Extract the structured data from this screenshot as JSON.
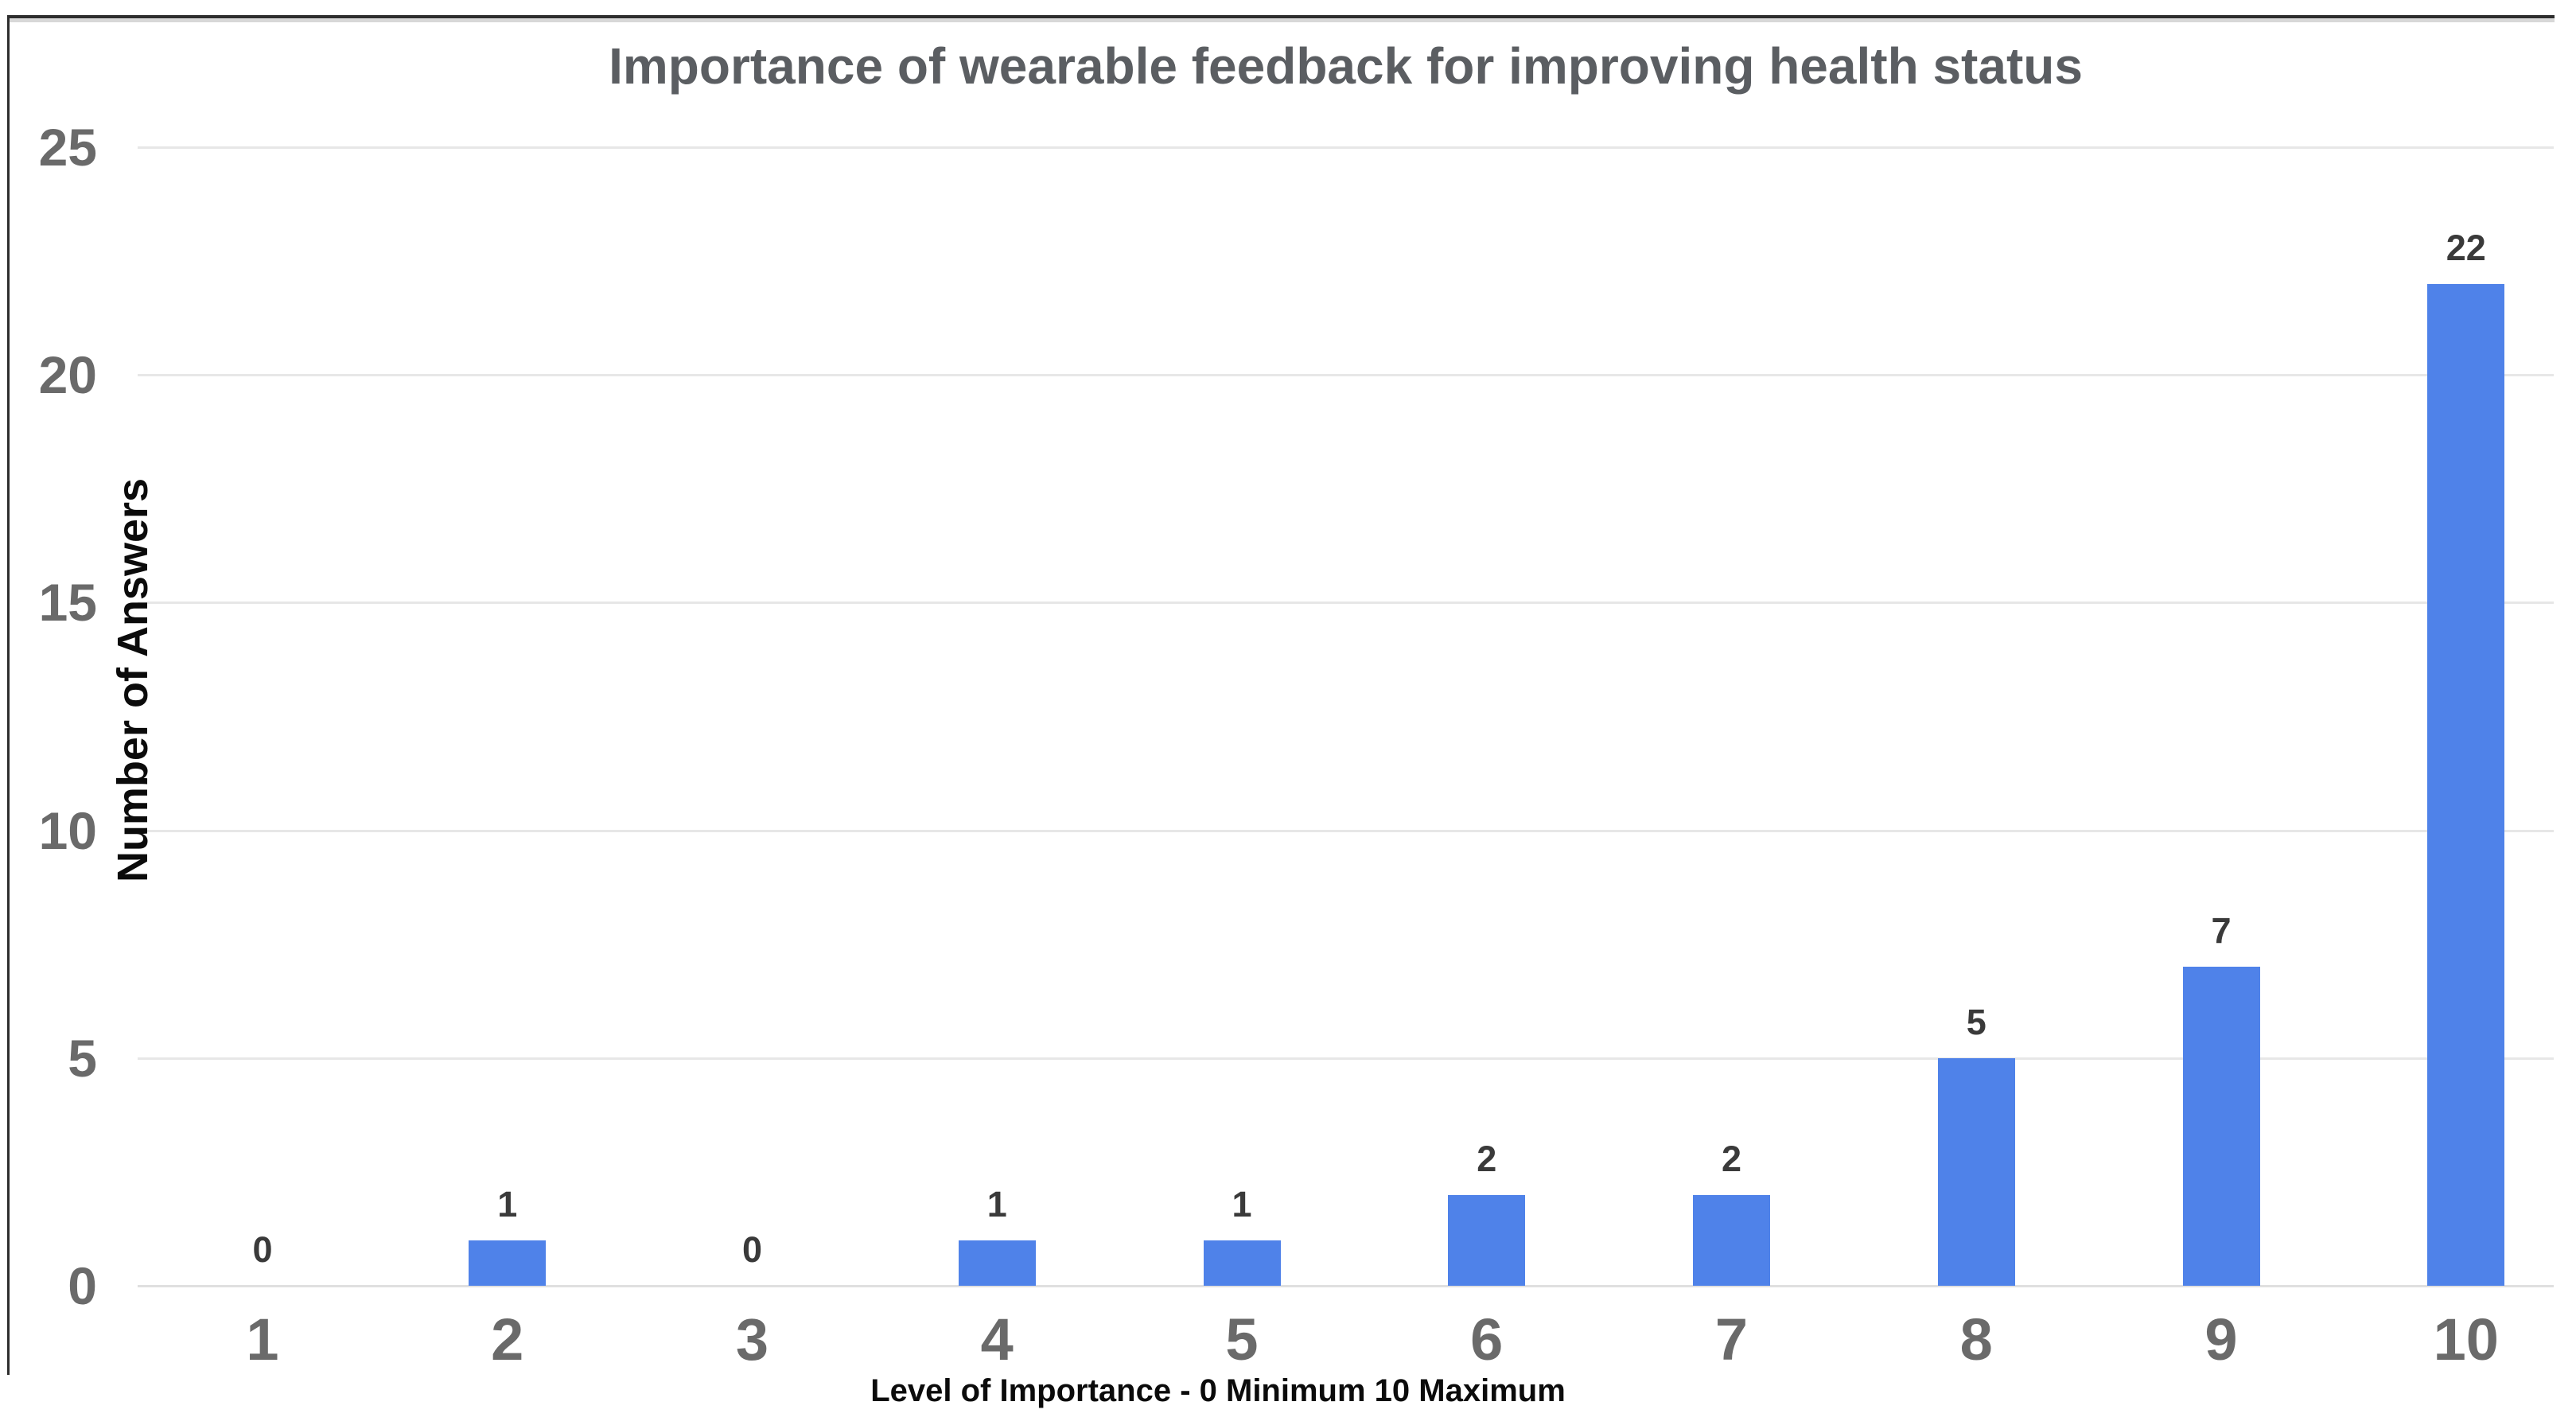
{
  "chart_data": {
    "type": "bar",
    "title": "Importance of wearable feedback for improving health status",
    "xlabel": "Level of Importance - 0 Minimum 10 Maximum",
    "ylabel": "Number of Answers",
    "categories": [
      "1",
      "2",
      "3",
      "4",
      "5",
      "6",
      "7",
      "8",
      "9",
      "10"
    ],
    "values": [
      0,
      1,
      0,
      1,
      1,
      2,
      2,
      5,
      7,
      22
    ],
    "ylim": [
      0,
      25
    ],
    "yticks": [
      0,
      5,
      10,
      15,
      20,
      25
    ],
    "grid": "horizontal",
    "legend": "none",
    "value_labels": true
  },
  "colors": {
    "bar": "#4f82e9",
    "gridline": "#e7e7e7",
    "baseline": "#e0e0e0",
    "tick_label": "#6a6a6a",
    "value_label": "#3a3a3a",
    "title": "#5b5e62",
    "axis_title": "#0b0b0b",
    "frame_border": "#2e2e2e",
    "frame_border_soft": "#d8d8d8",
    "background": "#ffffff"
  }
}
